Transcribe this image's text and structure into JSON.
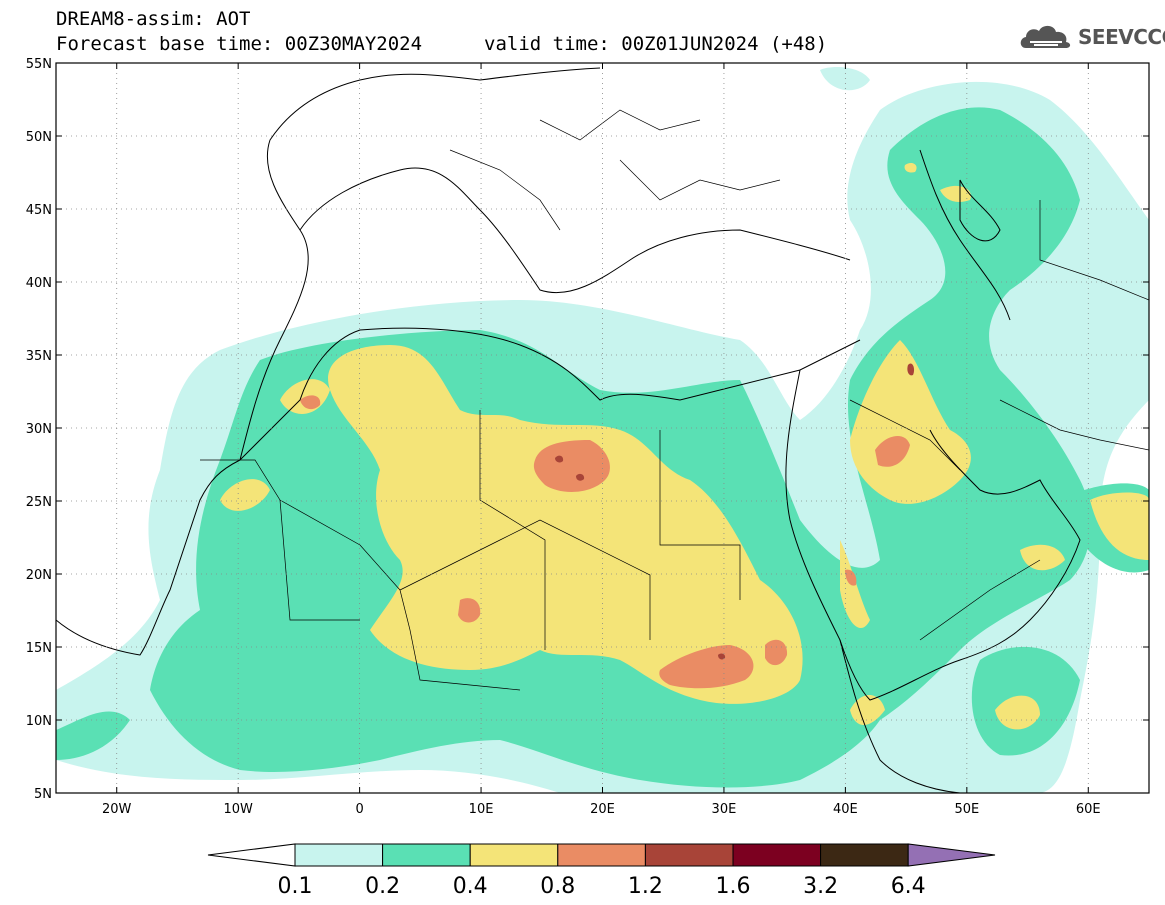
{
  "header": {
    "title_line1": "DREAM8-assim: AOT",
    "title_line2": "Forecast base time: 00Z30MAY2024",
    "valid_time": "valid time: 00Z01JUN2024 (+48)"
  },
  "logo": {
    "text": "SEEVCCC",
    "icon": "cloud-icon"
  },
  "map": {
    "projection": "lat-lon",
    "lon_range": [
      -25,
      65
    ],
    "lat_range": [
      5,
      55
    ],
    "lat_labels": [
      "55N",
      "50N",
      "45N",
      "40N",
      "35N",
      "30N",
      "25N",
      "20N",
      "15N",
      "10N",
      "5N"
    ],
    "lat_values": [
      55,
      50,
      45,
      40,
      35,
      30,
      25,
      20,
      15,
      10,
      5
    ],
    "lon_labels": [
      "20W",
      "10W",
      "0",
      "10E",
      "20E",
      "30E",
      "40E",
      "50E",
      "60E"
    ],
    "lon_values": [
      -20,
      -10,
      0,
      10,
      20,
      30,
      40,
      50,
      60
    ],
    "grid": "dotted"
  },
  "colorbar": {
    "labels": [
      "0.1",
      "0.2",
      "0.4",
      "0.8",
      "1.2",
      "1.6",
      "3.2",
      "6.4"
    ],
    "colors": [
      "#c8f4ee",
      "#5ae0b4",
      "#f4e478",
      "#ea8c64",
      "#a84438",
      "#7c0020",
      "#3c2814"
    ],
    "under_color": "#ffffff",
    "over_color": "#9470b4"
  }
}
